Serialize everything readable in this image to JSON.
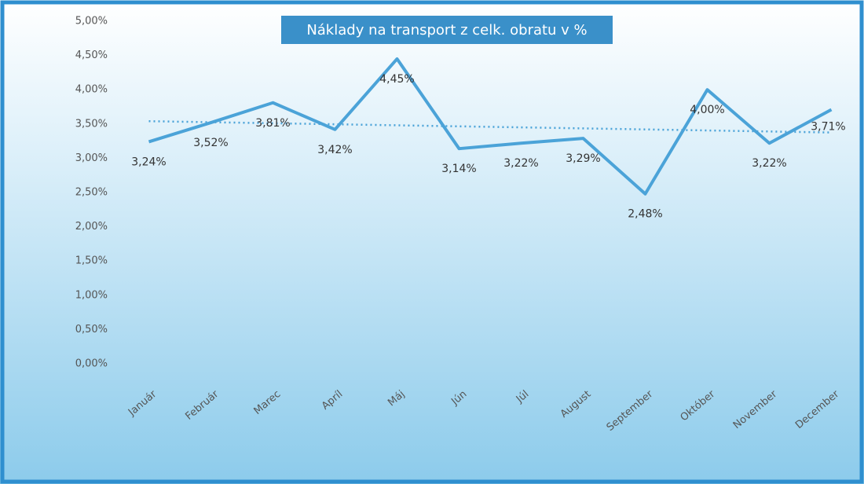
{
  "chart_data": {
    "type": "line",
    "title": "Náklady na transport z celk. obratu v %",
    "categories": [
      "Január",
      "Február",
      "Marec",
      "Apríl",
      "Máj",
      "Jún",
      "Júl",
      "August",
      "September",
      "Október",
      "November",
      "December"
    ],
    "series": [
      {
        "color": "#4ba3d8",
        "values": [
          3.24,
          3.52,
          3.81,
          3.42,
          4.45,
          3.14,
          3.22,
          3.29,
          2.48,
          4.0,
          3.22,
          3.71
        ],
        "value_labels": [
          "3,24%",
          "3,52%",
          "3,81%",
          "3,42%",
          "4,45%",
          "3,14%",
          "3,22%",
          "3,29%",
          "2,48%",
          "4,00%",
          "3,22%",
          "3,71%"
        ]
      }
    ],
    "ylim": [
      0,
      5
    ],
    "yticks": [
      {
        "value": 0,
        "label": "0,00%"
      },
      {
        "value": 0.5,
        "label": "0,50%"
      },
      {
        "value": 1,
        "label": "1,00%"
      },
      {
        "value": 1.5,
        "label": "1,50%"
      },
      {
        "value": 2,
        "label": "2,00%"
      },
      {
        "value": 2.5,
        "label": "2,50%"
      },
      {
        "value": 3,
        "label": "3,00%"
      },
      {
        "value": 3.5,
        "label": "3,50%"
      },
      {
        "value": 4,
        "label": "4,00%"
      },
      {
        "value": 4.5,
        "label": "4,50%"
      },
      {
        "value": 5,
        "label": "5,00%"
      }
    ],
    "grid": false,
    "trendline": true
  }
}
